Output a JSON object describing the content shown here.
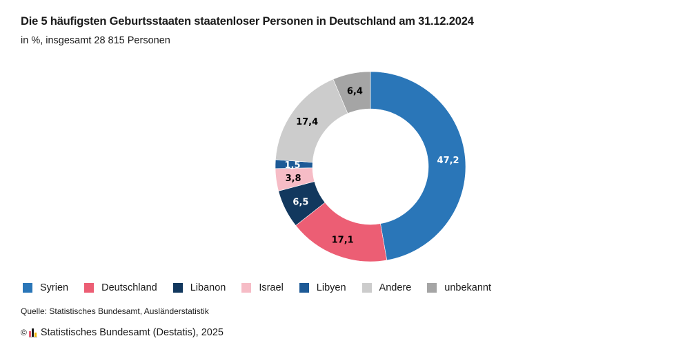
{
  "header": {
    "title": "Die 5 häufigsten Geburtsstaaten staatenloser Personen in Deutschland am 31.12.2024",
    "subtitle": "in %, insgesamt 28 815 Personen"
  },
  "footer": {
    "source": "Quelle: Statistisches Bundesamt, Ausländerstatistik",
    "copyright_symbol": "©",
    "copyright_text": "Statistisches Bundesamt (Destatis), 2025",
    "logo_icon": "destatis-logo-icon"
  },
  "chart_data": {
    "type": "pie",
    "variant": "donut",
    "title": "Die 5 häufigsten Geburtsstaaten staatenloser Personen in Deutschland am 31.12.2024",
    "subtitle": "in %, insgesamt 28 815 Personen",
    "unit": "%",
    "start_angle": "12 o'clock, clockwise",
    "legend_position": "bottom-left",
    "slices": [
      {
        "name": "Syrien",
        "value": 47.2,
        "label": "47,2",
        "color": "#2a76b8",
        "label_color": "#ffffff"
      },
      {
        "name": "Deutschland",
        "value": 17.1,
        "label": "17,1",
        "color": "#ec5e74",
        "label_color": "#000000"
      },
      {
        "name": "Libanon",
        "value": 6.5,
        "label": "6,5",
        "color": "#12385e",
        "label_color": "#ffffff"
      },
      {
        "name": "Israel",
        "value": 3.8,
        "label": "3,8",
        "color": "#f6bcc6",
        "label_color": "#000000"
      },
      {
        "name": "Libyen",
        "value": 1.5,
        "label": "1,5",
        "color": "#1d5a96",
        "label_color": "#ffffff"
      },
      {
        "name": "Andere",
        "value": 17.4,
        "label": "17,4",
        "color": "#cccccc",
        "label_color": "#000000"
      },
      {
        "name": "unbekannt",
        "value": 6.4,
        "label": "6,4",
        "color": "#a5a5a5",
        "label_color": "#000000"
      }
    ]
  }
}
